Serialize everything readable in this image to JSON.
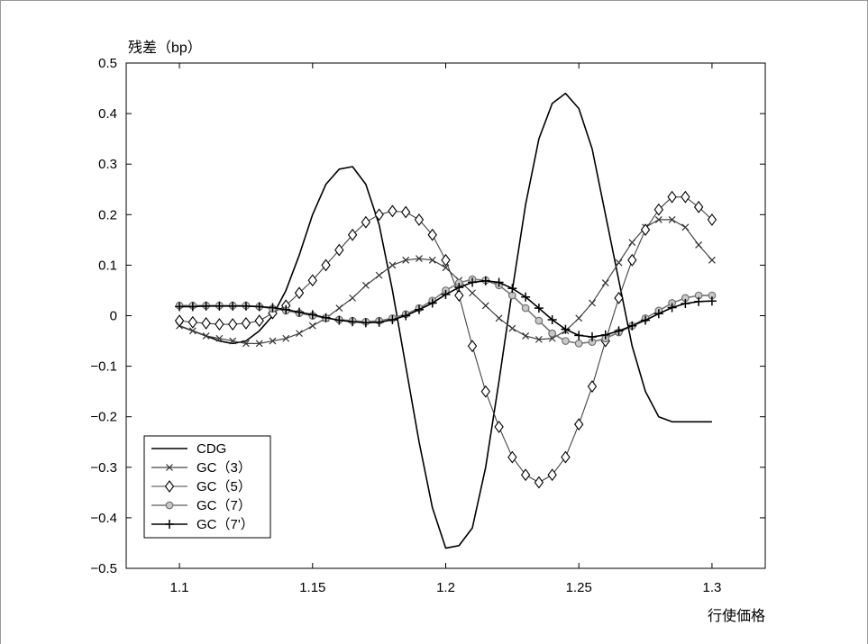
{
  "chart_data": {
    "type": "line",
    "ylabel": "残差（bp）",
    "xlabel": "行使価格",
    "xlim": [
      1.08,
      1.32
    ],
    "ylim": [
      -0.5,
      0.5
    ],
    "x_ticks": [
      "1.1",
      "1.15",
      "1.2",
      "1.25",
      "1.3"
    ],
    "x_tick_values": [
      1.1,
      1.15,
      1.2,
      1.25,
      1.3
    ],
    "y_ticks": [
      "0.5",
      "0.4",
      "0.3",
      "0.2",
      "0.1",
      "0",
      "−0.1",
      "−0.2",
      "−0.3",
      "−0.4",
      "−0.5"
    ],
    "y_tick_values": [
      0.5,
      0.4,
      0.3,
      0.2,
      0.1,
      0,
      -0.1,
      -0.2,
      -0.3,
      -0.4,
      -0.5
    ],
    "grid": false,
    "legend_position": "bottom-left",
    "x": [
      1.1,
      1.105,
      1.11,
      1.115,
      1.12,
      1.125,
      1.13,
      1.135,
      1.14,
      1.145,
      1.15,
      1.155,
      1.16,
      1.165,
      1.17,
      1.175,
      1.18,
      1.185,
      1.19,
      1.195,
      1.2,
      1.205,
      1.21,
      1.215,
      1.22,
      1.225,
      1.23,
      1.235,
      1.24,
      1.245,
      1.25,
      1.255,
      1.26,
      1.265,
      1.27,
      1.275,
      1.28,
      1.285,
      1.29,
      1.295,
      1.3
    ],
    "series": [
      {
        "name": "CDG",
        "marker": "none",
        "values": [
          -0.02,
          -0.03,
          -0.04,
          -0.05,
          -0.055,
          -0.05,
          -0.03,
          0,
          0.05,
          0.12,
          0.2,
          0.26,
          0.29,
          0.295,
          0.26,
          0.18,
          0.05,
          -0.1,
          -0.25,
          -0.38,
          -0.46,
          -0.455,
          -0.42,
          -0.3,
          -0.13,
          0.05,
          0.22,
          0.35,
          0.42,
          0.44,
          0.41,
          0.33,
          0.2,
          0.07,
          -0.06,
          -0.15,
          -0.2,
          -0.21,
          -0.21,
          -0.21,
          -0.21
        ]
      },
      {
        "name": "GC（3）",
        "marker": "x",
        "values": [
          -0.02,
          -0.03,
          -0.04,
          -0.045,
          -0.05,
          -0.055,
          -0.055,
          -0.05,
          -0.045,
          -0.035,
          -0.02,
          -0.005,
          0.015,
          0.035,
          0.06,
          0.08,
          0.1,
          0.11,
          0.113,
          0.11,
          0.095,
          0.07,
          0.045,
          0.02,
          -0.005,
          -0.025,
          -0.04,
          -0.047,
          -0.045,
          -0.03,
          -0.005,
          0.025,
          0.065,
          0.105,
          0.145,
          0.175,
          0.19,
          0.19,
          0.175,
          0.14,
          0.11
        ]
      },
      {
        "name": "GC（5）",
        "marker": "diamond",
        "values": [
          -0.01,
          -0.013,
          -0.015,
          -0.017,
          -0.017,
          -0.015,
          -0.01,
          0.005,
          0.02,
          0.045,
          0.07,
          0.1,
          0.13,
          0.16,
          0.185,
          0.2,
          0.207,
          0.205,
          0.19,
          0.16,
          0.11,
          0.04,
          -0.06,
          -0.15,
          -0.22,
          -0.28,
          -0.315,
          -0.33,
          -0.315,
          -0.28,
          -0.215,
          -0.14,
          -0.05,
          0.035,
          0.11,
          0.17,
          0.21,
          0.235,
          0.235,
          0.215,
          0.19
        ]
      },
      {
        "name": "GC（7）",
        "marker": "circle",
        "values": [
          0.02,
          0.02,
          0.02,
          0.02,
          0.02,
          0.02,
          0.018,
          0.014,
          0.01,
          0.005,
          0,
          -0.005,
          -0.008,
          -0.01,
          -0.012,
          -0.01,
          -0.005,
          0.003,
          0.015,
          0.03,
          0.05,
          0.065,
          0.072,
          0.07,
          0.06,
          0.04,
          0.015,
          -0.01,
          -0.035,
          -0.05,
          -0.055,
          -0.052,
          -0.045,
          -0.033,
          -0.02,
          -0.005,
          0.01,
          0.025,
          0.035,
          0.04,
          0.04
        ]
      },
      {
        "name": "GC（7'）",
        "marker": "plus",
        "values": [
          0.018,
          0.018,
          0.019,
          0.019,
          0.019,
          0.019,
          0.018,
          0.016,
          0.012,
          0.007,
          0.002,
          -0.004,
          -0.009,
          -0.012,
          -0.014,
          -0.013,
          -0.008,
          0,
          0.012,
          0.025,
          0.042,
          0.056,
          0.066,
          0.069,
          0.066,
          0.054,
          0.037,
          0.015,
          -0.008,
          -0.027,
          -0.039,
          -0.042,
          -0.038,
          -0.03,
          -0.02,
          -0.009,
          0.004,
          0.016,
          0.024,
          0.028,
          0.029
        ]
      }
    ]
  }
}
